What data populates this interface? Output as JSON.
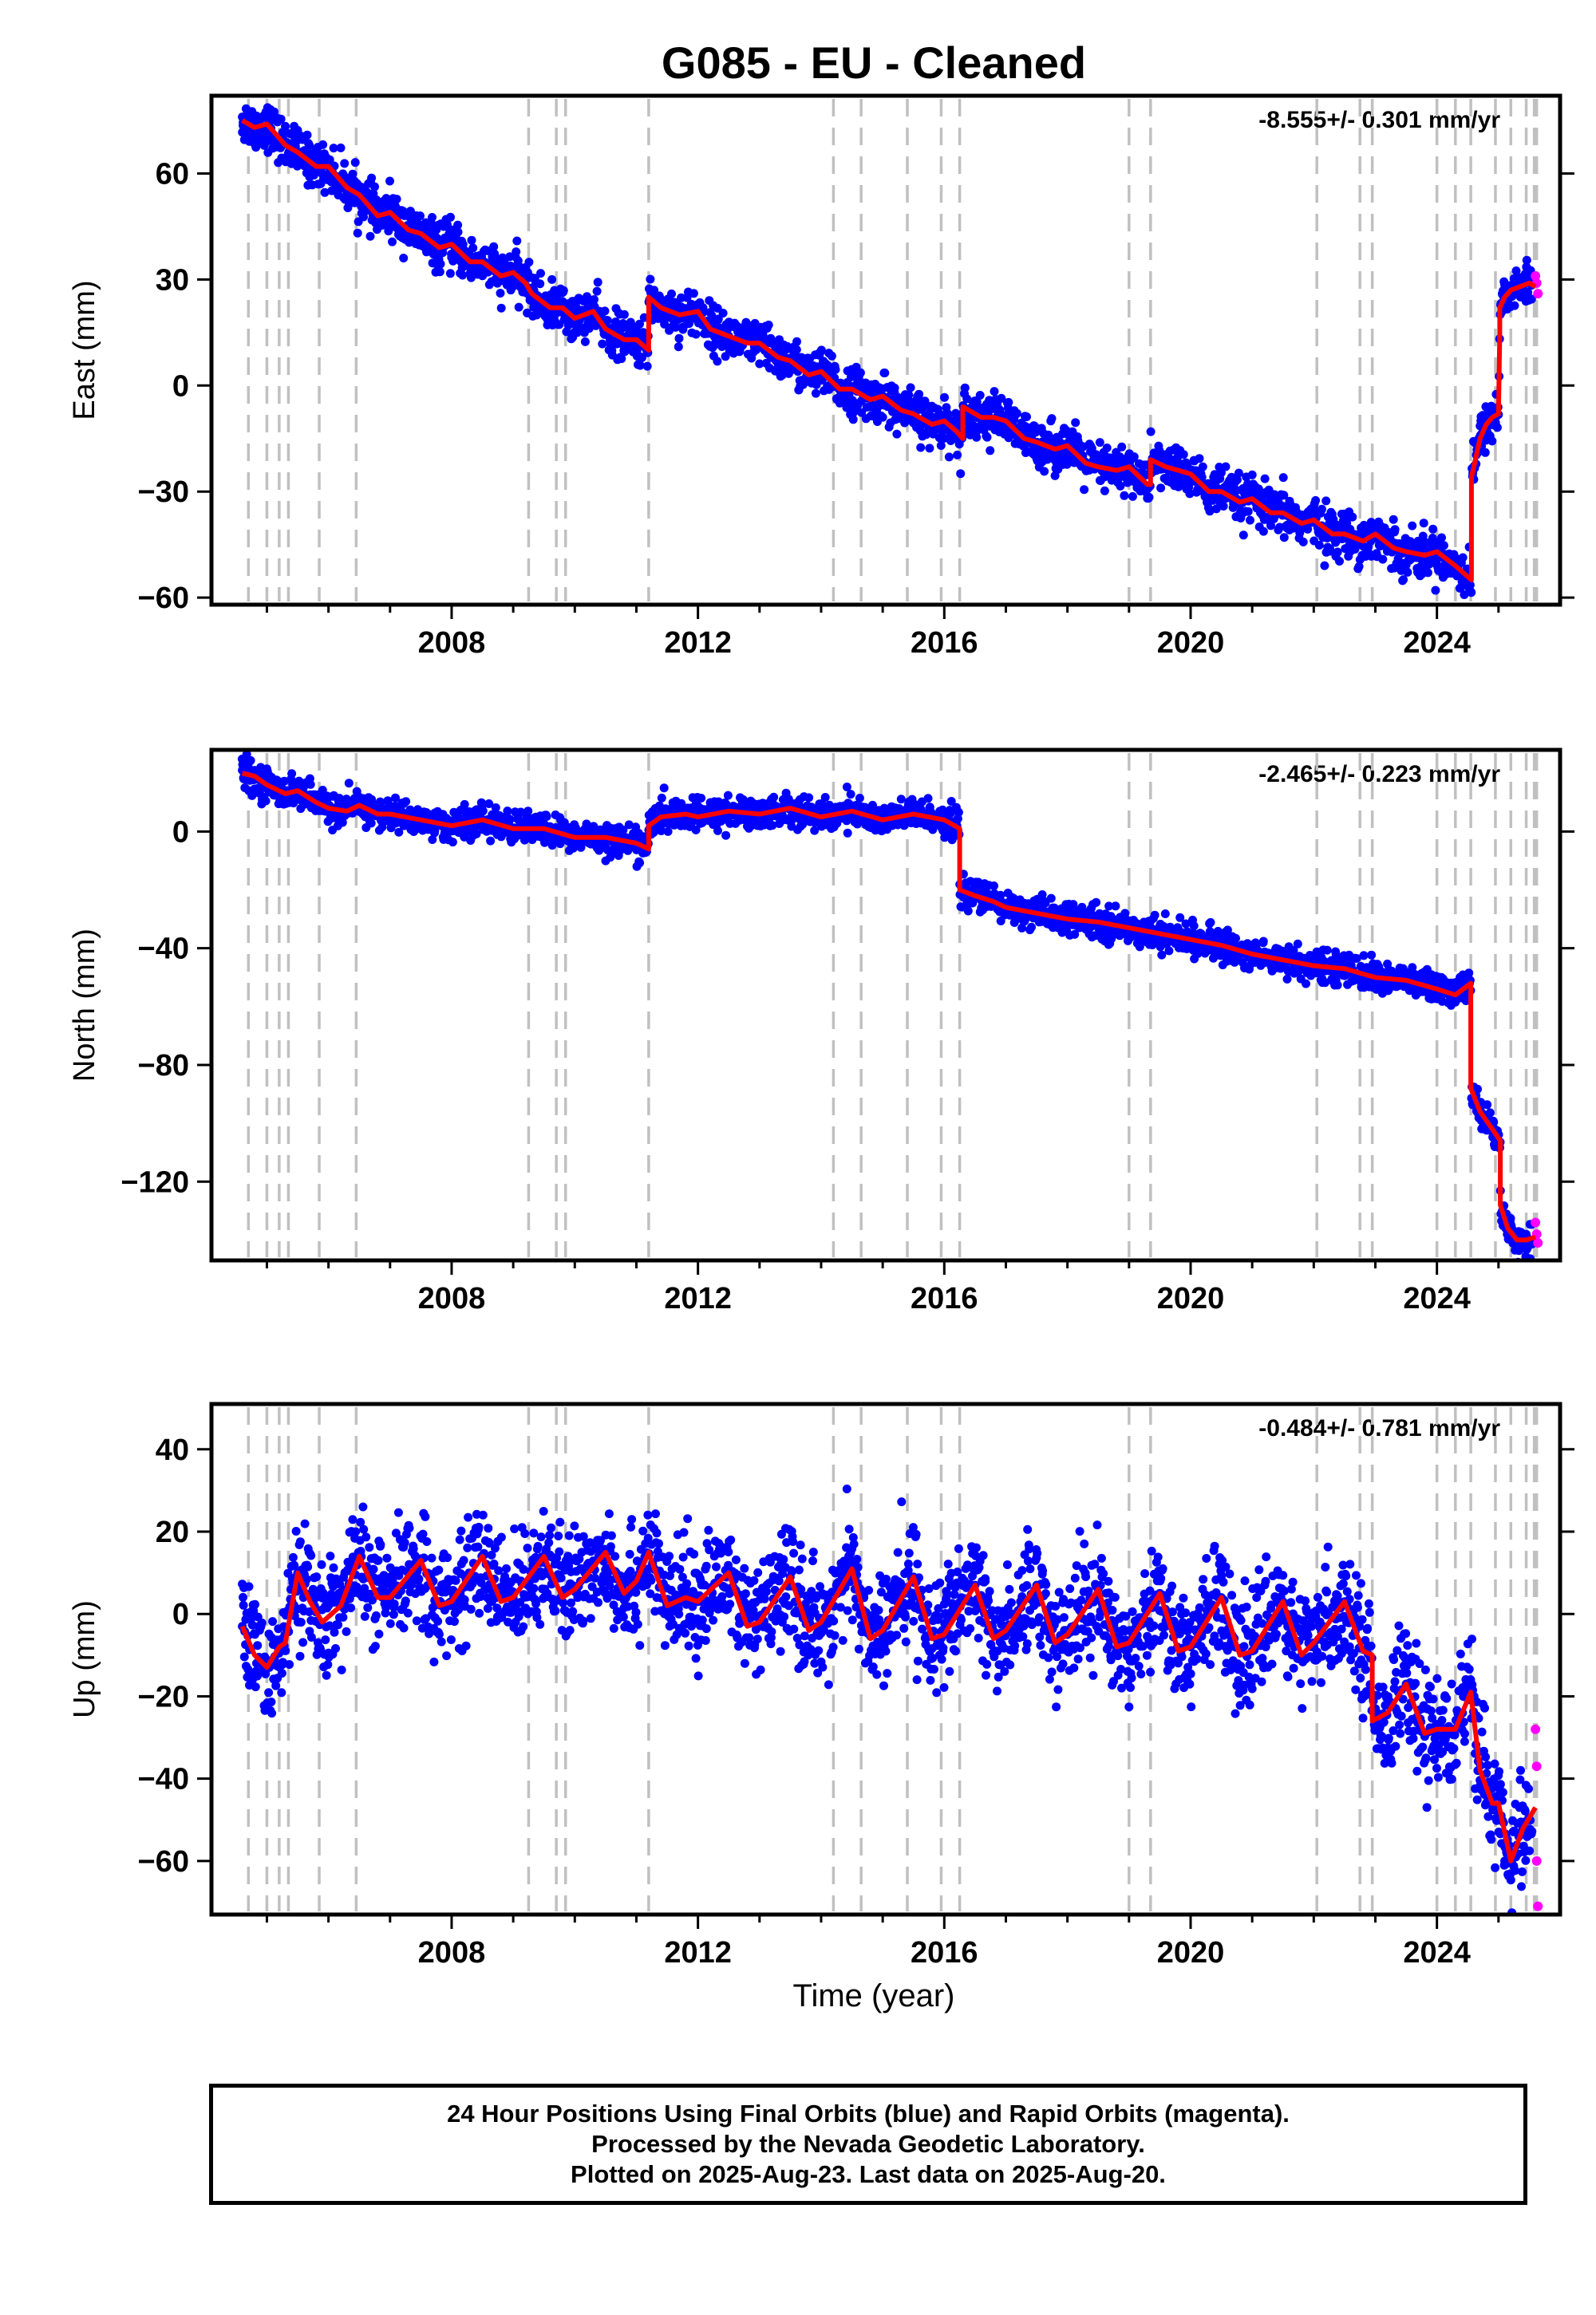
{
  "title": "G085  - EU - Cleaned",
  "colors": {
    "final_orbits": "#0000ff",
    "rapid_orbits": "#ff00ff",
    "model_fit": "#ff0000",
    "event_lines": "#c0c0c0"
  },
  "chart_data": [
    {
      "type": "scatter",
      "panel": "east",
      "ylabel": "East (mm)",
      "rate": "-8.555+/- 0.301 mm/yr",
      "xlim": [
        2004.1,
        2026.0
      ],
      "ylim": [
        -62,
        82
      ],
      "yticks": [
        -60,
        -30,
        0,
        30,
        60
      ],
      "yticklabels": [
        "−60",
        "−30",
        "0",
        "30",
        "60"
      ],
      "xticks": [
        2008,
        2012,
        2016,
        2020,
        2024
      ],
      "xticklabels": [
        "2008",
        "2012",
        "2016",
        "2020",
        "2024"
      ],
      "xlabel": "",
      "series": [
        {
          "name": "",
          "kind": "model_fit",
          "x": [
            2004.6,
            2004.8,
            2005.0,
            2005.3,
            2005.5,
            2005.8,
            2006.0,
            2006.3,
            2006.5,
            2006.8,
            2007.0,
            2007.3,
            2007.5,
            2007.8,
            2008.0,
            2008.3,
            2008.5,
            2008.8,
            2009.0,
            2009.2,
            2009.3,
            2009.6,
            2009.8,
            2010.0,
            2010.3,
            2010.5,
            2010.8,
            2011.0,
            2011.2,
            2011.2,
            2011.4,
            2011.7,
            2012.0,
            2012.2,
            2012.5,
            2012.8,
            2013.0,
            2013.3,
            2013.5,
            2013.8,
            2014.0,
            2014.3,
            2014.5,
            2014.8,
            2015.0,
            2015.3,
            2015.5,
            2015.8,
            2016.0,
            2016.2,
            2016.3,
            2016.3,
            2016.6,
            2016.8,
            2017.0,
            2017.3,
            2017.5,
            2017.8,
            2018.0,
            2018.3,
            2018.5,
            2018.8,
            2019.0,
            2019.3,
            2019.35,
            2019.35,
            2019.6,
            2019.8,
            2020.0,
            2020.3,
            2020.5,
            2020.8,
            2021.0,
            2021.3,
            2021.5,
            2021.8,
            2022.0,
            2022.3,
            2022.5,
            2022.8,
            2023.0,
            2023.3,
            2023.5,
            2023.8,
            2024.0,
            2024.3,
            2024.56,
            2024.56,
            2024.7,
            2024.8,
            2024.9,
            2025.0,
            2025.02,
            2025.02,
            2025.1,
            2025.2,
            2025.35,
            2025.5,
            2025.6
          ],
          "y": [
            75,
            73,
            74,
            68,
            66,
            62,
            62,
            56,
            54,
            48,
            49,
            44,
            43,
            39,
            40,
            35,
            35,
            31,
            32,
            29,
            26,
            22,
            22,
            19,
            21,
            16,
            13,
            13,
            10,
            25,
            22,
            20,
            21,
            16,
            14,
            12,
            12,
            8,
            7,
            3,
            4,
            -1,
            -1,
            -4,
            -3,
            -7,
            -8,
            -11,
            -10,
            -13,
            -15,
            -6,
            -9,
            -9,
            -10,
            -15,
            -16,
            -18,
            -17,
            -22,
            -23,
            -24,
            -23,
            -28,
            -28,
            -21,
            -23,
            -24,
            -25,
            -30,
            -30,
            -33,
            -32,
            -36,
            -36,
            -39,
            -38,
            -42,
            -42,
            -44,
            -42,
            -46,
            -47,
            -48,
            -47,
            -51,
            -55,
            -26,
            -15,
            -11,
            -9,
            -8,
            15,
            22,
            25,
            27,
            28,
            29,
            28
          ]
        },
        {
          "name": "",
          "kind": "final_orbits",
          "x": [
            2004.6,
            2005.0,
            2005.5,
            2006.0,
            2006.5,
            2007.0,
            2007.5,
            2008.0,
            2008.5,
            2009.0,
            2009.5,
            2010.0,
            2010.5,
            2011.0,
            2011.5,
            2012.0,
            2012.5,
            2013.0,
            2013.5,
            2014.0,
            2014.5,
            2015.0,
            2015.5,
            2016.0,
            2016.5,
            2017.0,
            2017.5,
            2018.0,
            2018.5,
            2019.0,
            2019.5,
            2020.0,
            2020.5,
            2021.0,
            2021.5,
            2022.0,
            2022.5,
            2023.0,
            2023.5,
            2024.0,
            2024.5,
            2024.8,
            2025.1,
            2025.4,
            2025.55
          ],
          "y": [
            76,
            73,
            66,
            62,
            54,
            49,
            43,
            40,
            35,
            32,
            22,
            19,
            16,
            12,
            22,
            21,
            14,
            12,
            7,
            4,
            -1,
            -3,
            -8,
            -10,
            -9,
            -10,
            -16,
            -17,
            -23,
            -23,
            -23,
            -25,
            -30,
            -32,
            -36,
            -38,
            -42,
            -42,
            -47,
            -47,
            -53,
            -11,
            25,
            29,
            30
          ]
        },
        {
          "name": "",
          "kind": "rapid_orbits",
          "x": [
            2025.6,
            2025.62,
            2025.64
          ],
          "y": [
            31,
            29,
            26
          ]
        }
      ]
    },
    {
      "type": "scatter",
      "panel": "north",
      "ylabel": "North (mm)",
      "rate": "-2.465+/- 0.223 mm/yr",
      "xlim": [
        2004.1,
        2026.0
      ],
      "ylim": [
        -147,
        28
      ],
      "yticks": [
        -120,
        -80,
        -40,
        0
      ],
      "yticklabels": [
        "−120",
        "−80",
        "−40",
        "0"
      ],
      "xticks": [
        2008,
        2012,
        2016,
        2020,
        2024
      ],
      "xticklabels": [
        "2008",
        "2012",
        "2016",
        "2020",
        "2024"
      ],
      "xlabel": "",
      "series": [
        {
          "name": "",
          "kind": "model_fit",
          "x": [
            2004.6,
            2004.8,
            2005.0,
            2005.3,
            2005.5,
            2005.8,
            2006.0,
            2006.3,
            2006.5,
            2006.8,
            2007.0,
            2007.5,
            2008.0,
            2008.5,
            2009.0,
            2009.5,
            2010.0,
            2010.5,
            2011.0,
            2011.2,
            2011.2,
            2011.4,
            2011.8,
            2012.0,
            2012.5,
            2013.0,
            2013.5,
            2014.0,
            2014.5,
            2015.0,
            2015.5,
            2016.0,
            2016.25,
            2016.25,
            2016.5,
            2016.8,
            2017.0,
            2017.5,
            2018.0,
            2018.5,
            2019.0,
            2019.5,
            2020.0,
            2020.5,
            2021.0,
            2021.5,
            2022.0,
            2022.5,
            2023.0,
            2023.5,
            2024.0,
            2024.3,
            2024.55,
            2024.55,
            2024.7,
            2024.9,
            2025.03,
            2025.03,
            2025.15,
            2025.3,
            2025.45,
            2025.6
          ],
          "y": [
            20,
            19,
            16,
            13,
            14,
            10,
            8,
            7,
            9,
            6,
            6,
            4,
            2,
            4,
            1,
            1,
            -2,
            -2,
            -4,
            -6,
            2,
            5,
            6,
            5,
            7,
            6,
            8,
            5,
            7,
            4,
            6,
            4,
            1,
            -20,
            -22,
            -24,
            -26,
            -28,
            -30,
            -31,
            -33,
            -35,
            -37,
            -39,
            -42,
            -44,
            -46,
            -47,
            -50,
            -51,
            -54,
            -56,
            -52,
            -88,
            -96,
            -102,
            -106,
            -128,
            -136,
            -140,
            -140,
            -139
          ]
        },
        {
          "name": "",
          "kind": "final_orbits",
          "x": [
            2004.6,
            2005.0,
            2005.5,
            2006.0,
            2006.5,
            2007.0,
            2007.5,
            2008.0,
            2008.5,
            2009.0,
            2009.5,
            2010.0,
            2010.5,
            2011.0,
            2011.5,
            2012.0,
            2012.5,
            2013.0,
            2013.5,
            2014.0,
            2014.5,
            2015.0,
            2015.5,
            2016.0,
            2016.5,
            2017.0,
            2017.5,
            2018.0,
            2018.5,
            2019.0,
            2019.5,
            2020.0,
            2020.5,
            2021.0,
            2021.5,
            2022.0,
            2022.5,
            2023.0,
            2023.5,
            2024.0,
            2024.5,
            2024.7,
            2024.9,
            2025.2,
            2025.4
          ],
          "y": [
            21,
            16,
            14,
            8,
            9,
            6,
            3,
            2,
            4,
            1,
            1,
            -2,
            -2,
            -4,
            5,
            6,
            7,
            6,
            8,
            5,
            7,
            4,
            6,
            4,
            -22,
            -25,
            -28,
            -30,
            -31,
            -33,
            -35,
            -37,
            -39,
            -42,
            -44,
            -46,
            -47,
            -50,
            -51,
            -54,
            -54,
            -95,
            -103,
            -140,
            -142
          ]
        },
        {
          "name": "",
          "kind": "rapid_orbits",
          "x": [
            2025.6,
            2025.62,
            2025.64
          ],
          "y": [
            -134,
            -138,
            -141
          ]
        }
      ]
    },
    {
      "type": "scatter",
      "panel": "up",
      "ylabel": "Up (mm)",
      "rate": "-0.484+/- 0.781 mm/yr",
      "xlim": [
        2004.1,
        2026.0
      ],
      "ylim": [
        -73,
        51
      ],
      "yticks": [
        -60,
        -40,
        -20,
        0,
        20,
        40
      ],
      "yticklabels": [
        "−60",
        "−40",
        "−20",
        "0",
        "20",
        "40"
      ],
      "xticks": [
        2008,
        2012,
        2016,
        2020,
        2024
      ],
      "xticklabels": [
        "2008",
        "2012",
        "2016",
        "2020",
        "2024"
      ],
      "xlabel": "Time (year)",
      "series": [
        {
          "name": "",
          "kind": "model_fit",
          "x": [
            2004.6,
            2004.8,
            2005.0,
            2005.2,
            2005.3,
            2005.5,
            2005.7,
            2005.9,
            2006.2,
            2006.5,
            2006.8,
            2007.0,
            2007.5,
            2007.8,
            2008.0,
            2008.5,
            2008.8,
            2009.0,
            2009.5,
            2009.8,
            2010.0,
            2010.5,
            2010.8,
            2011.0,
            2011.2,
            2011.5,
            2011.8,
            2012.0,
            2012.5,
            2012.8,
            2013.0,
            2013.5,
            2013.8,
            2014.0,
            2014.5,
            2014.8,
            2015.0,
            2015.5,
            2015.8,
            2016.0,
            2016.5,
            2016.8,
            2017.0,
            2017.5,
            2017.8,
            2018.0,
            2018.5,
            2018.8,
            2019.0,
            2019.5,
            2019.8,
            2020.0,
            2020.5,
            2020.8,
            2021.0,
            2021.5,
            2021.8,
            2022.0,
            2022.5,
            2022.8,
            2022.95,
            2022.95,
            2023.2,
            2023.5,
            2023.8,
            2024.0,
            2024.3,
            2024.55,
            2024.7,
            2024.9,
            2025.0,
            2025.2,
            2025.4,
            2025.6
          ],
          "y": [
            -3,
            -10,
            -13,
            -8,
            -7,
            10,
            3,
            -2,
            2,
            14,
            4,
            4,
            13,
            2,
            3,
            14,
            3,
            4,
            14,
            4,
            6,
            15,
            5,
            8,
            15,
            2,
            4,
            3,
            10,
            -3,
            -2,
            9,
            -4,
            -2,
            11,
            -6,
            -4,
            9,
            -6,
            -5,
            7,
            -6,
            -4,
            7,
            -7,
            -5,
            6,
            -8,
            -7,
            5,
            -9,
            -8,
            4,
            -10,
            -9,
            3,
            -10,
            -7,
            3,
            -9,
            -10,
            -26,
            -24,
            -17,
            -29,
            -28,
            -28,
            -19,
            -38,
            -46,
            -46,
            -60,
            -52,
            -47
          ]
        },
        {
          "name": "",
          "kind": "final_orbits",
          "x": [
            2004.6,
            2005.0,
            2005.5,
            2006.0,
            2006.5,
            2007.0,
            2007.5,
            2008.0,
            2008.5,
            2009.0,
            2009.5,
            2010.0,
            2010.5,
            2011.0,
            2011.5,
            2012.0,
            2012.5,
            2013.0,
            2013.5,
            2014.0,
            2014.5,
            2015.0,
            2015.5,
            2016.0,
            2016.5,
            2017.0,
            2017.5,
            2018.0,
            2018.5,
            2019.0,
            2019.5,
            2020.0,
            2020.5,
            2021.0,
            2021.5,
            2022.0,
            2022.5,
            2023.0,
            2023.5,
            2024.0,
            2024.5,
            2024.8,
            2025.1,
            2025.4
          ],
          "y": [
            -3,
            -13,
            10,
            2,
            14,
            4,
            13,
            3,
            14,
            4,
            14,
            6,
            15,
            8,
            2,
            3,
            10,
            -2,
            9,
            -2,
            11,
            -4,
            9,
            -5,
            7,
            -4,
            7,
            -5,
            6,
            -7,
            5,
            -8,
            4,
            -9,
            3,
            -7,
            3,
            -26,
            -17,
            -28,
            -19,
            -46,
            -60,
            -52
          ]
        },
        {
          "name": "",
          "kind": "rapid_orbits",
          "x": [
            2025.6,
            2025.62,
            2025.62,
            2025.64
          ],
          "y": [
            -28,
            -37,
            -60,
            -71
          ]
        }
      ]
    }
  ],
  "event_years": [
    2004.7,
    2005.0,
    2005.2,
    2005.35,
    2005.85,
    2006.45,
    2009.25,
    2009.7,
    2009.85,
    2011.2,
    2014.2,
    2014.65,
    2015.4,
    2015.95,
    2016.25,
    2019.0,
    2019.35,
    2022.05,
    2022.75,
    2022.95,
    2024.0,
    2024.3,
    2024.55,
    2024.95,
    2025.2,
    2025.45,
    2025.58,
    2025.62
  ],
  "footer": {
    "line1": "24 Hour Positions Using Final Orbits (blue) and Rapid Orbits (magenta).",
    "line2": "Processed by the Nevada Geodetic Laboratory.",
    "line3": "Plotted on 2025-Aug-23. Last data on 2025-Aug-20."
  }
}
